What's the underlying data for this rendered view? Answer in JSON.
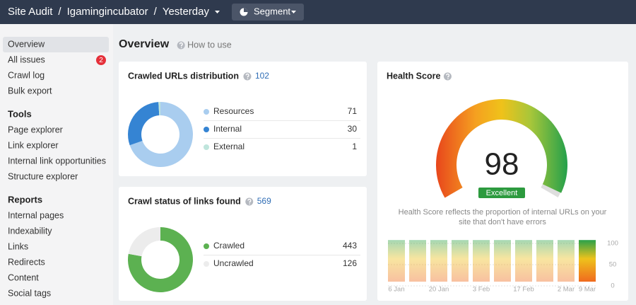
{
  "header": {
    "breadcrumb": [
      "Site Audit",
      "Igamingincubator",
      "Yesterday"
    ],
    "separator": "/",
    "segment": "Segment"
  },
  "sidebar": {
    "groups": [
      {
        "title": null,
        "items": [
          "Overview",
          "All issues",
          "Crawl log",
          "Bulk export"
        ]
      },
      {
        "title": "Tools",
        "items": [
          "Page explorer",
          "Link explorer",
          "Internal link opportunities",
          "Structure explorer"
        ]
      },
      {
        "title": "Reports",
        "items": [
          "Internal pages",
          "Indexability",
          "Links",
          "Redirects",
          "Content",
          "Social tags"
        ]
      }
    ],
    "active": "Overview",
    "issues_badge": 2
  },
  "main": {
    "title": "Overview",
    "help": "How to use"
  },
  "crawled_urls": {
    "title": "Crawled URLs distribution",
    "total": 102,
    "rows": [
      {
        "label": "Resources",
        "value": 71,
        "color": "#a9cdef"
      },
      {
        "label": "Internal",
        "value": 30,
        "color": "#3584d3"
      },
      {
        "label": "External",
        "value": 1,
        "color": "#bfe5dc"
      }
    ]
  },
  "crawl_status": {
    "title": "Crawl status of links found",
    "total": 569,
    "rows": [
      {
        "label": "Crawled",
        "value": 443,
        "color": "#5cb151"
      },
      {
        "label": "Uncrawled",
        "value": 126,
        "color": "#ececec"
      }
    ]
  },
  "health": {
    "title": "Health Score",
    "score": 98,
    "rating": "Excellent",
    "description": [
      "Health Score reflects the proportion of internal URLs on your",
      "site that don't have errors"
    ],
    "history": {
      "x": [
        "6 Jan",
        null,
        "20 Jan",
        null,
        "3 Feb",
        null,
        "17 Feb",
        null,
        "2 Mar",
        "9 Mar"
      ],
      "values": [
        98,
        98,
        98,
        98,
        98,
        98,
        98,
        98,
        98,
        98
      ],
      "ylim": [
        0,
        100
      ],
      "yticks": [
        0,
        50,
        100
      ]
    }
  }
}
